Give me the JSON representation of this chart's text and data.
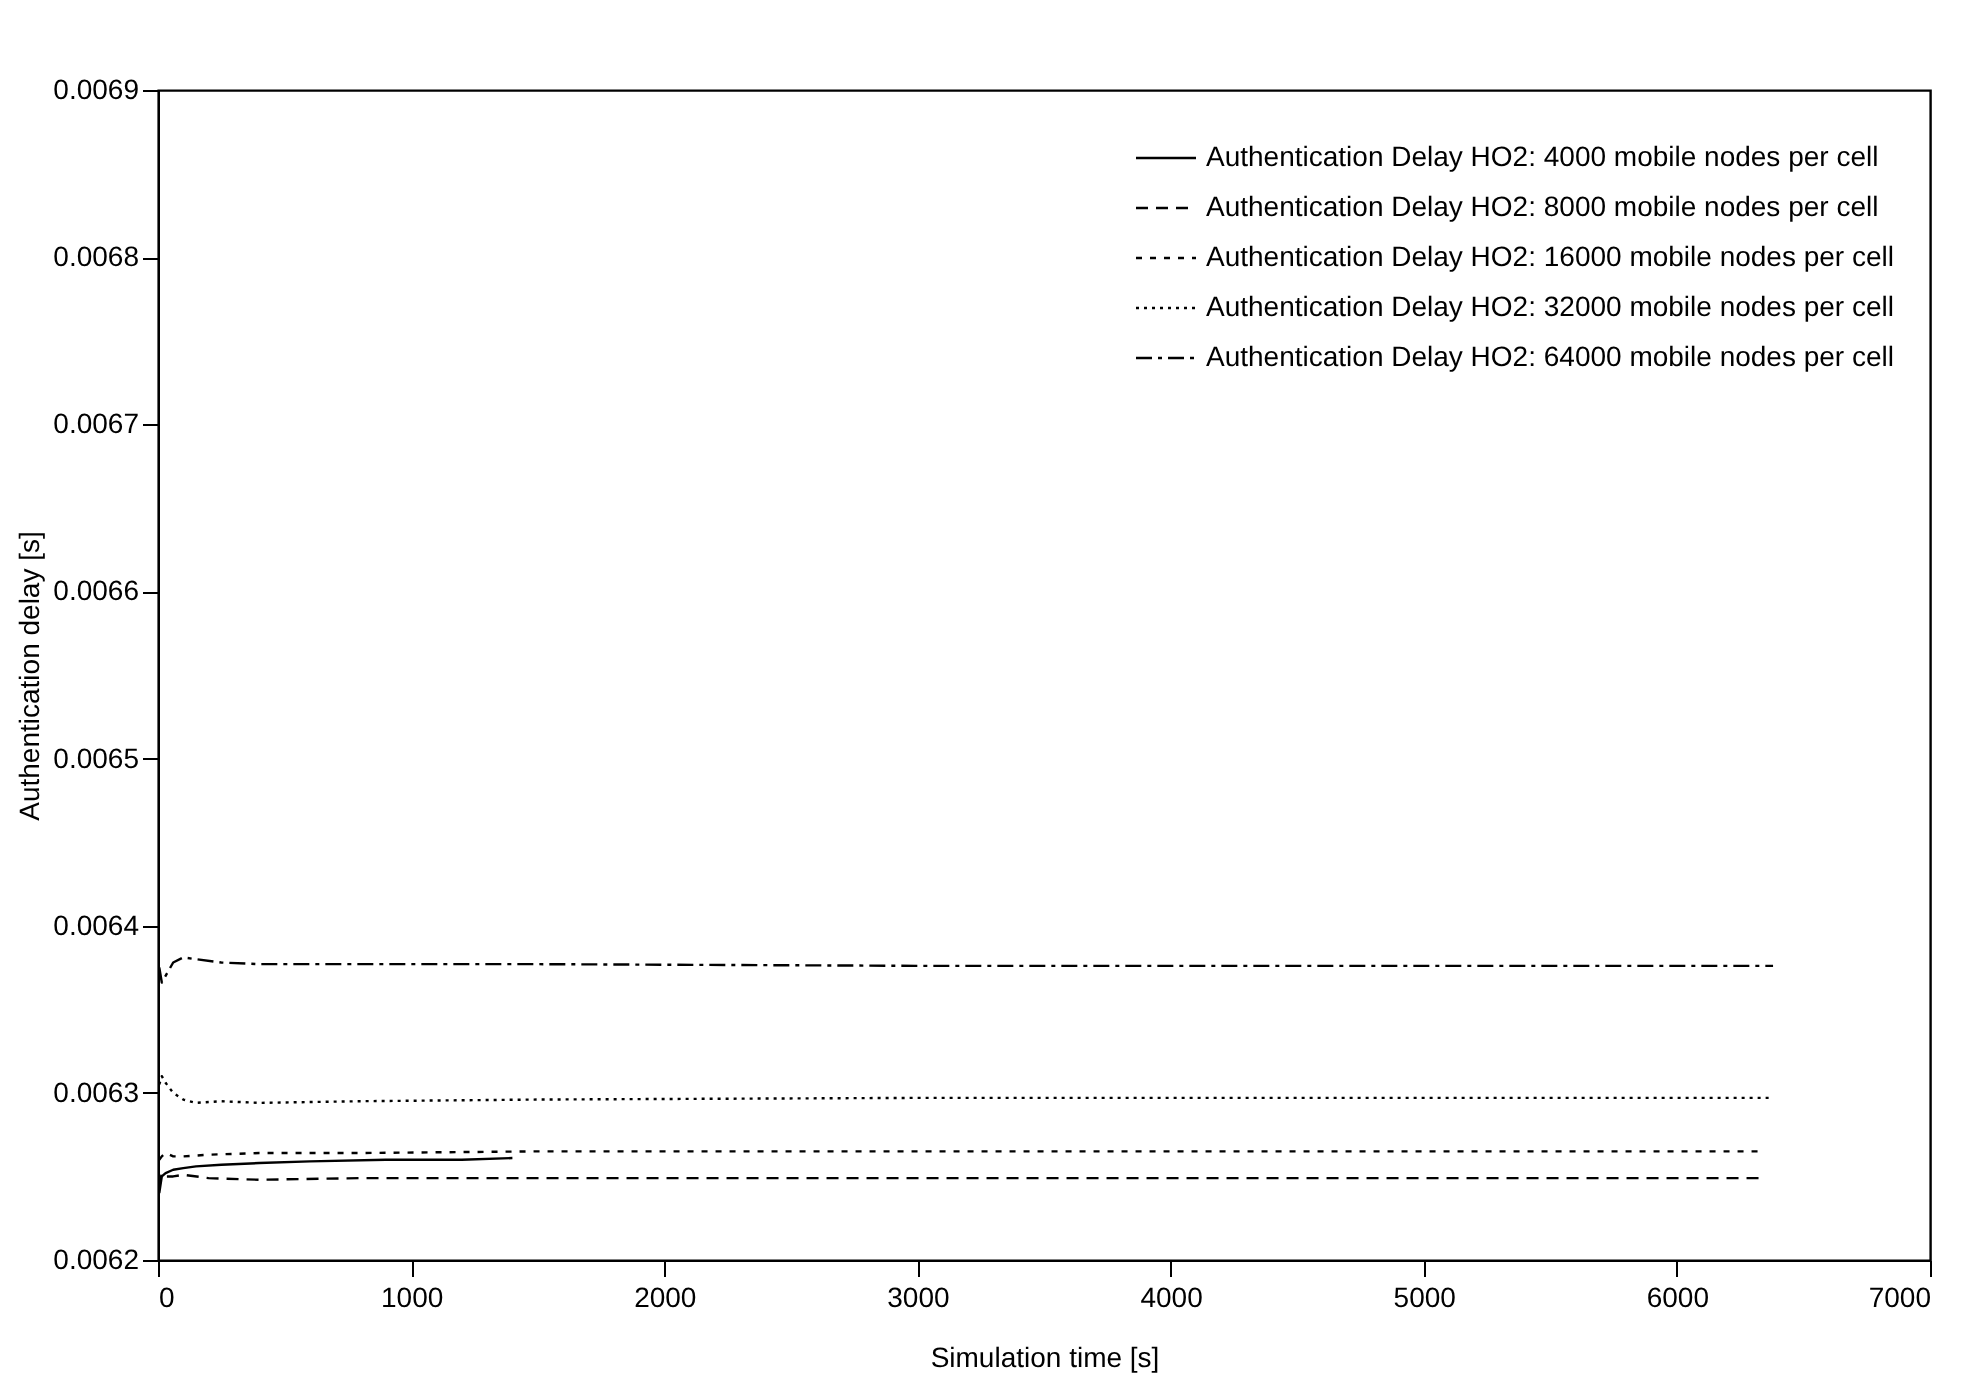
{
  "chart_data": {
    "type": "line",
    "xlabel": "Simulation time [s]",
    "ylabel": "Authentication delay [s]",
    "xlim": [
      0,
      7000
    ],
    "xticks": [
      0,
      1000,
      2000,
      3000,
      4000,
      5000,
      6000,
      7000
    ],
    "ylim": [
      0.0062,
      0.0069
    ],
    "yticks": [
      0.0062,
      0.0063,
      0.0064,
      0.0065,
      0.0066,
      0.0067,
      0.0068,
      0.0069
    ],
    "grid": false,
    "legend": "top right",
    "marker": "none",
    "series": [
      {
        "name": "Authentication Delay HO2: 4000 mobile nodes per cell",
        "color": "#000000",
        "line_style": "solid",
        "x": [
          5,
          15,
          30,
          60,
          100,
          150,
          250,
          400,
          600,
          900,
          1200,
          1400
        ],
        "values": [
          0.00624,
          0.00625,
          0.006252,
          0.006254,
          0.006255,
          0.006256,
          0.006257,
          0.006258,
          0.006259,
          0.00626,
          0.00626,
          0.006261
        ]
      },
      {
        "name": "Authentication Delay HO2: 8000 mobile nodes per cell",
        "color": "#000000",
        "line_style": "dashed",
        "x": [
          5,
          15,
          30,
          60,
          100,
          200,
          400,
          800,
          1500,
          3000,
          4500,
          6330
        ],
        "values": [
          0.006244,
          0.006252,
          0.00625,
          0.00625,
          0.006251,
          0.006249,
          0.006248,
          0.006249,
          0.006249,
          0.006249,
          0.006249,
          0.006249
        ]
      },
      {
        "name": "Authentication Delay HO2: 16000 mobile nodes per cell",
        "color": "#000000",
        "line_style": "dashed",
        "x": [
          5,
          15,
          30,
          60,
          100,
          200,
          400,
          800,
          1500,
          3000,
          4500,
          6330
        ],
        "values": [
          0.00626,
          0.006262,
          0.006264,
          0.006262,
          0.006262,
          0.006263,
          0.006264,
          0.006264,
          0.006265,
          0.006265,
          0.006265,
          0.006265
        ]
      },
      {
        "name": "Authentication Delay HO2: 32000 mobile nodes per cell",
        "color": "#000000",
        "line_style": "dotted",
        "x": [
          5,
          15,
          30,
          60,
          100,
          150,
          250,
          400,
          800,
          1500,
          3000,
          4500,
          6380
        ],
        "values": [
          0.006305,
          0.00631,
          0.006306,
          0.0063,
          0.006296,
          0.006294,
          0.006295,
          0.006294,
          0.006295,
          0.006296,
          0.006297,
          0.006297,
          0.006297
        ]
      },
      {
        "name": "Authentication Delay HO2: 64000 mobile nodes per cell",
        "color": "#000000",
        "line_style": "dashed",
        "x": [
          5,
          15,
          30,
          60,
          100,
          150,
          250,
          400,
          800,
          1500,
          3000,
          4500,
          6380
        ],
        "values": [
          0.006375,
          0.006366,
          0.00637,
          0.006378,
          0.006381,
          0.00638,
          0.006378,
          0.006377,
          0.006377,
          0.006377,
          0.006376,
          0.006376,
          0.006376
        ]
      }
    ]
  }
}
